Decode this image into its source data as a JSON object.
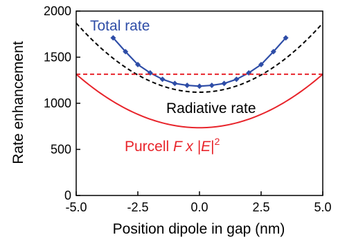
{
  "chart_data": {
    "type": "line",
    "xlabel": "Position dipole in gap (nm)",
    "ylabel": "Rate enhancement",
    "xlim": [
      -5.0,
      5.0
    ],
    "ylim": [
      0,
      2000
    ],
    "xticks": [
      -5.0,
      -2.5,
      0.0,
      2.5,
      5.0
    ],
    "xtick_labels": [
      "-5.0",
      "-2.5",
      "0.0",
      "2.5",
      "5.0"
    ],
    "yticks": [
      0,
      500,
      1000,
      1500,
      2000
    ],
    "ytick_labels": [
      "0",
      "500",
      "1000",
      "1500",
      "2000"
    ],
    "grid": false,
    "legend": "none",
    "series": [
      {
        "name": "Total rate",
        "color": "#2e4da7",
        "style": "solid-with-diamond-markers",
        "x": [
          -3.5,
          -3.0,
          -2.5,
          -2.0,
          -1.5,
          -1.0,
          -0.5,
          0.0,
          0.5,
          1.0,
          1.5,
          2.0,
          2.5,
          3.0,
          3.5
        ],
        "y": [
          1710,
          1560,
          1420,
          1330,
          1260,
          1215,
          1195,
          1185,
          1195,
          1215,
          1260,
          1330,
          1420,
          1560,
          1710
        ]
      },
      {
        "name": "Radiative rate",
        "color": "#000000",
        "style": "dashed",
        "x": [
          -5.0,
          -4.0,
          -3.0,
          -2.0,
          -1.0,
          0.0,
          1.0,
          2.0,
          3.0,
          4.0,
          5.0
        ],
        "y": [
          1870,
          1630,
          1430,
          1270,
          1160,
          1120,
          1160,
          1270,
          1430,
          1630,
          1870
        ]
      },
      {
        "name": "Purcell F x |E|^2",
        "color": "#e8242b",
        "style": "solid",
        "x": [
          -5.0,
          -4.0,
          -3.0,
          -2.0,
          -1.0,
          0.0,
          1.0,
          2.0,
          3.0,
          4.0,
          5.0
        ],
        "y": [
          1315,
          1100,
          930,
          815,
          750,
          735,
          750,
          815,
          930,
          1100,
          1315
        ]
      },
      {
        "color": "#e8242b",
        "style": "dashed",
        "x": [
          -5.0,
          5.0
        ],
        "y": [
          1315,
          1315
        ]
      }
    ],
    "annotations": {
      "total": "Total rate",
      "radiative": "Radiative rate",
      "purcell_prefix": "Purcell ",
      "purcell_F": "F",
      "purcell_x": " x |",
      "purcell_E": "E",
      "purcell_bar": "|",
      "purcell_sup": "2"
    }
  }
}
